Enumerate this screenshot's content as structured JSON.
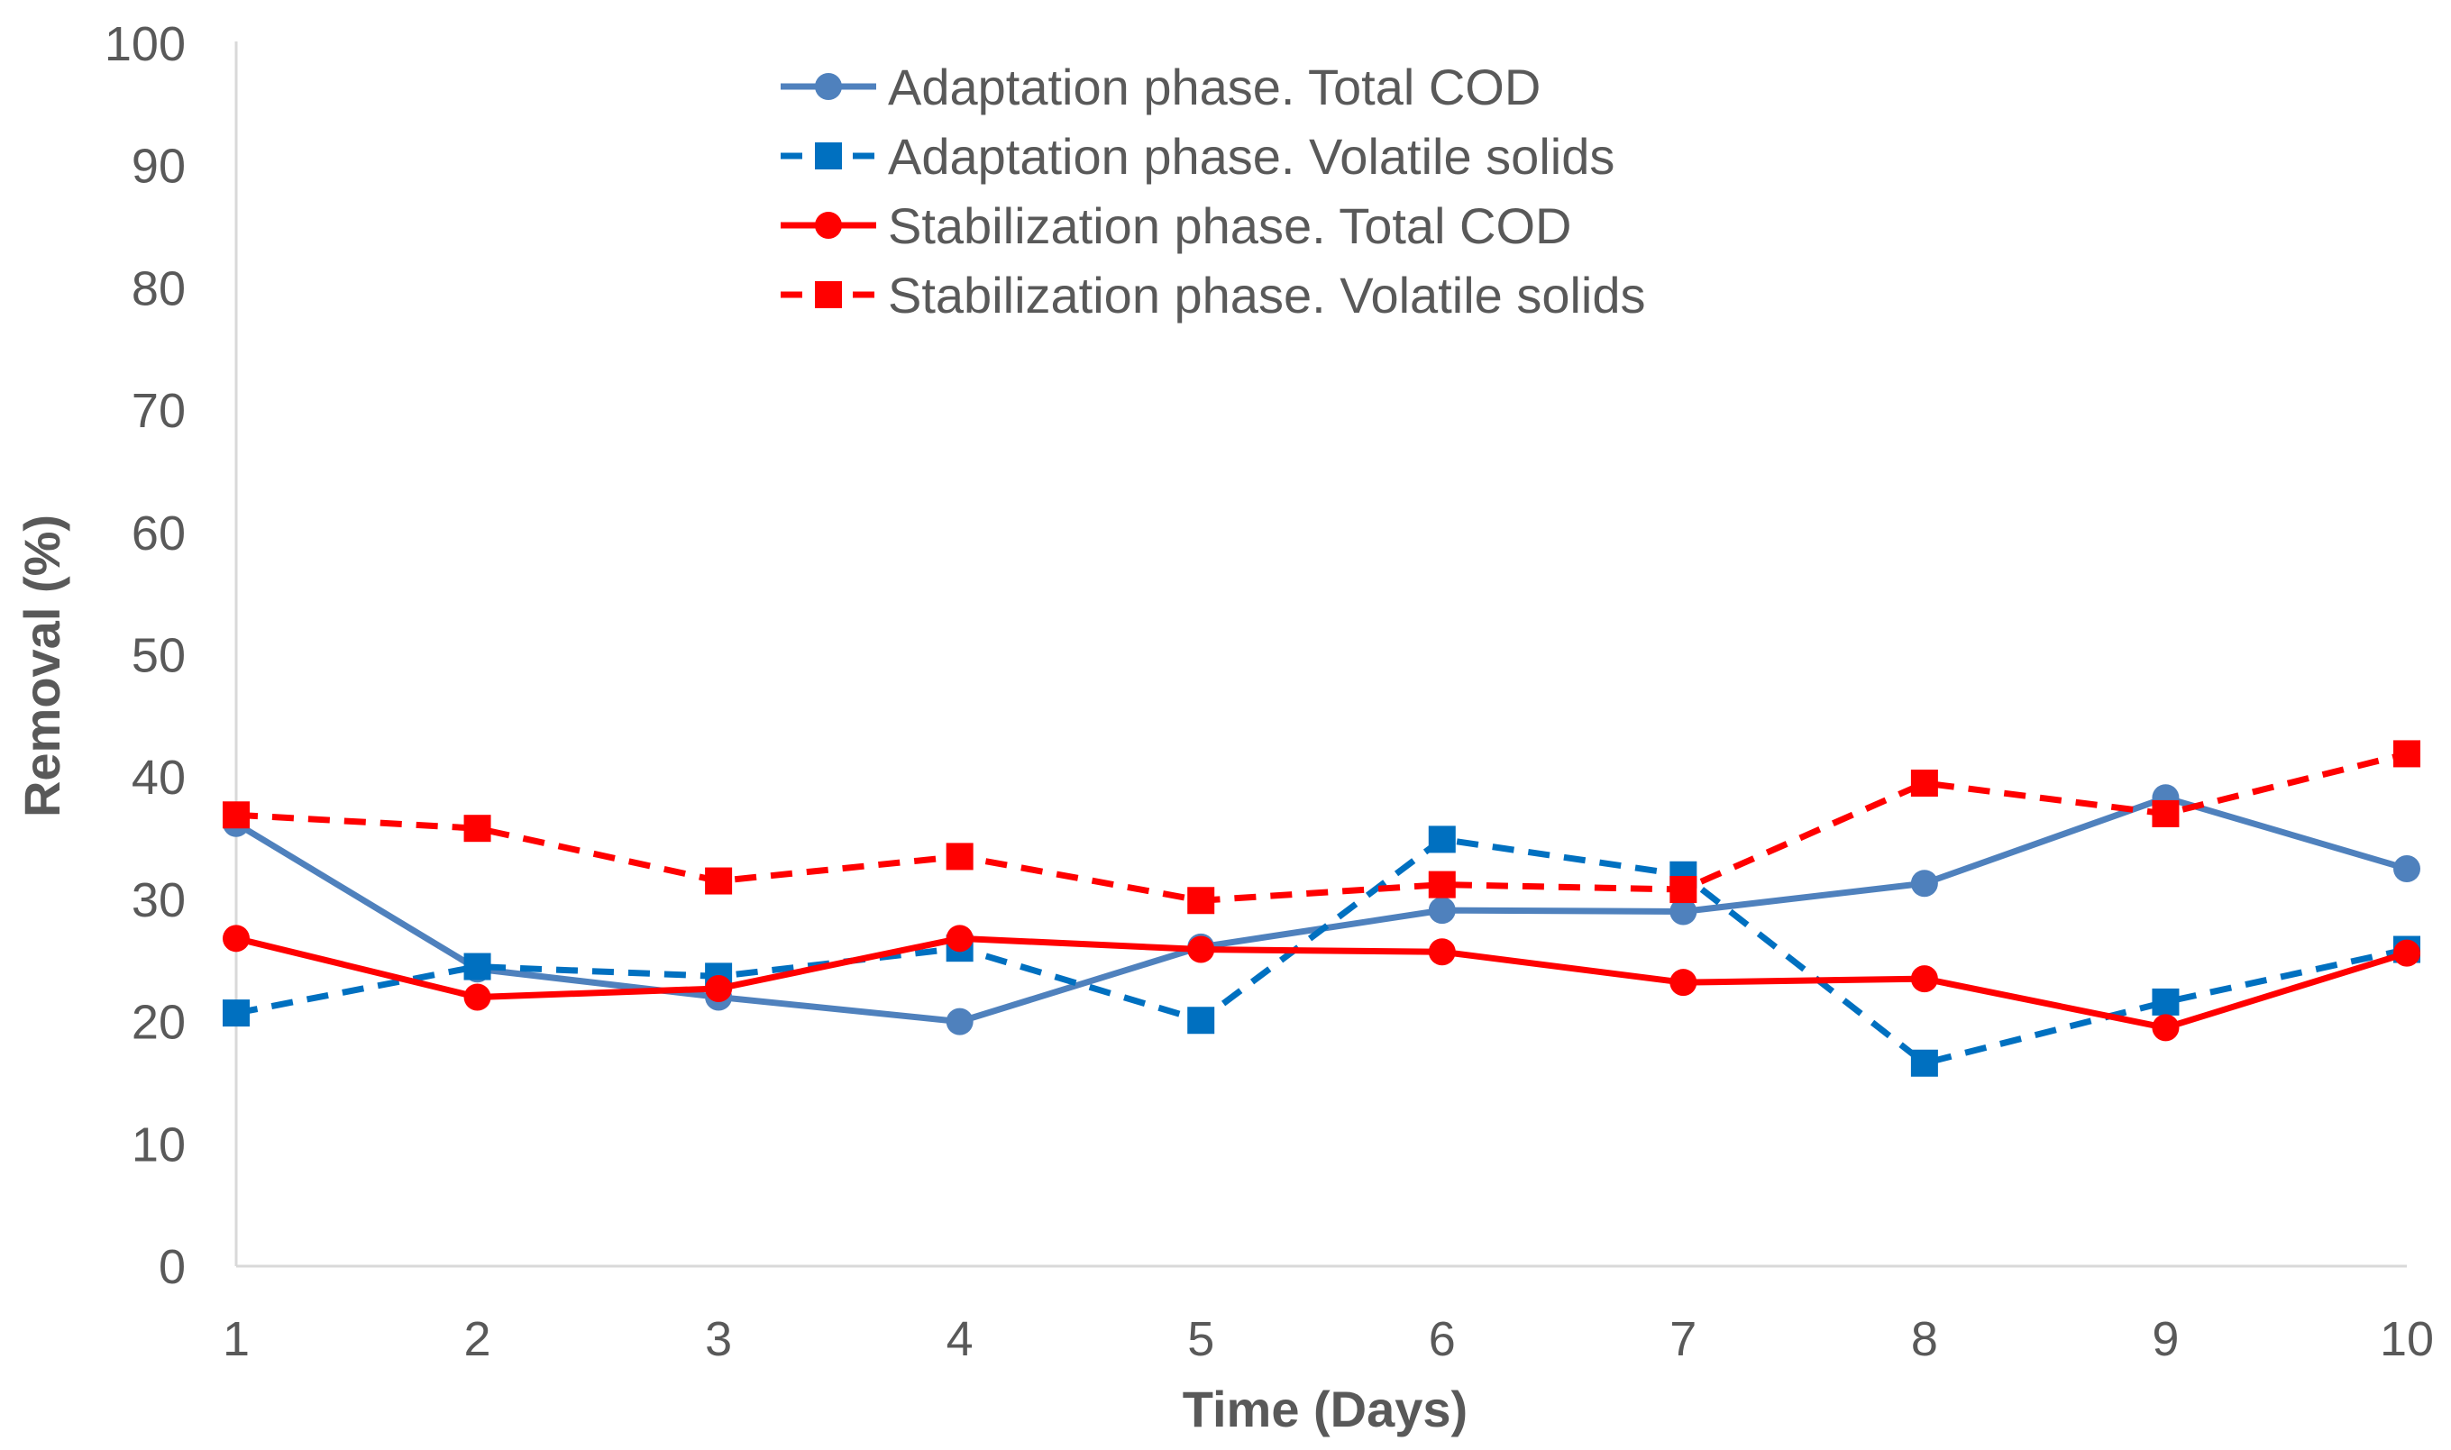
{
  "chart_data": {
    "type": "line",
    "title": "",
    "xlabel": "Time (Days)",
    "ylabel": "Removal (%)",
    "x": [
      1,
      2,
      3,
      4,
      5,
      6,
      7,
      8,
      9,
      10
    ],
    "xlim": [
      1,
      10
    ],
    "ylim": [
      0,
      100
    ],
    "yticks": [
      0,
      10,
      20,
      30,
      40,
      50,
      60,
      70,
      80,
      90,
      100
    ],
    "grid": false,
    "legend_position": "top-center",
    "series": [
      {
        "name": "Adaptation phase. Total COD",
        "color": "#4f81bd",
        "dash": "solid",
        "marker": "circle",
        "values": [
          36.2,
          24.3,
          22.0,
          20.0,
          26.1,
          29.1,
          29.0,
          31.3,
          38.3,
          32.5
        ]
      },
      {
        "name": "Adaptation phase. Volatile solids",
        "color": "#0070c0",
        "dash": "dashed",
        "marker": "square",
        "values": [
          20.7,
          24.5,
          23.7,
          26.0,
          20.1,
          34.9,
          32.0,
          16.6,
          21.6,
          25.9
        ]
      },
      {
        "name": "Stabilization phase. Total COD",
        "color": "#ff0000",
        "dash": "solid",
        "marker": "circle",
        "values": [
          26.8,
          22.0,
          22.7,
          26.8,
          25.9,
          25.7,
          23.2,
          23.5,
          19.5,
          25.6
        ]
      },
      {
        "name": "Stabilization phase. Volatile solids",
        "color": "#ff0000",
        "dash": "dashed",
        "marker": "square",
        "values": [
          36.9,
          35.8,
          31.5,
          33.5,
          29.9,
          31.2,
          30.8,
          39.5,
          37.0,
          41.9
        ]
      }
    ]
  }
}
